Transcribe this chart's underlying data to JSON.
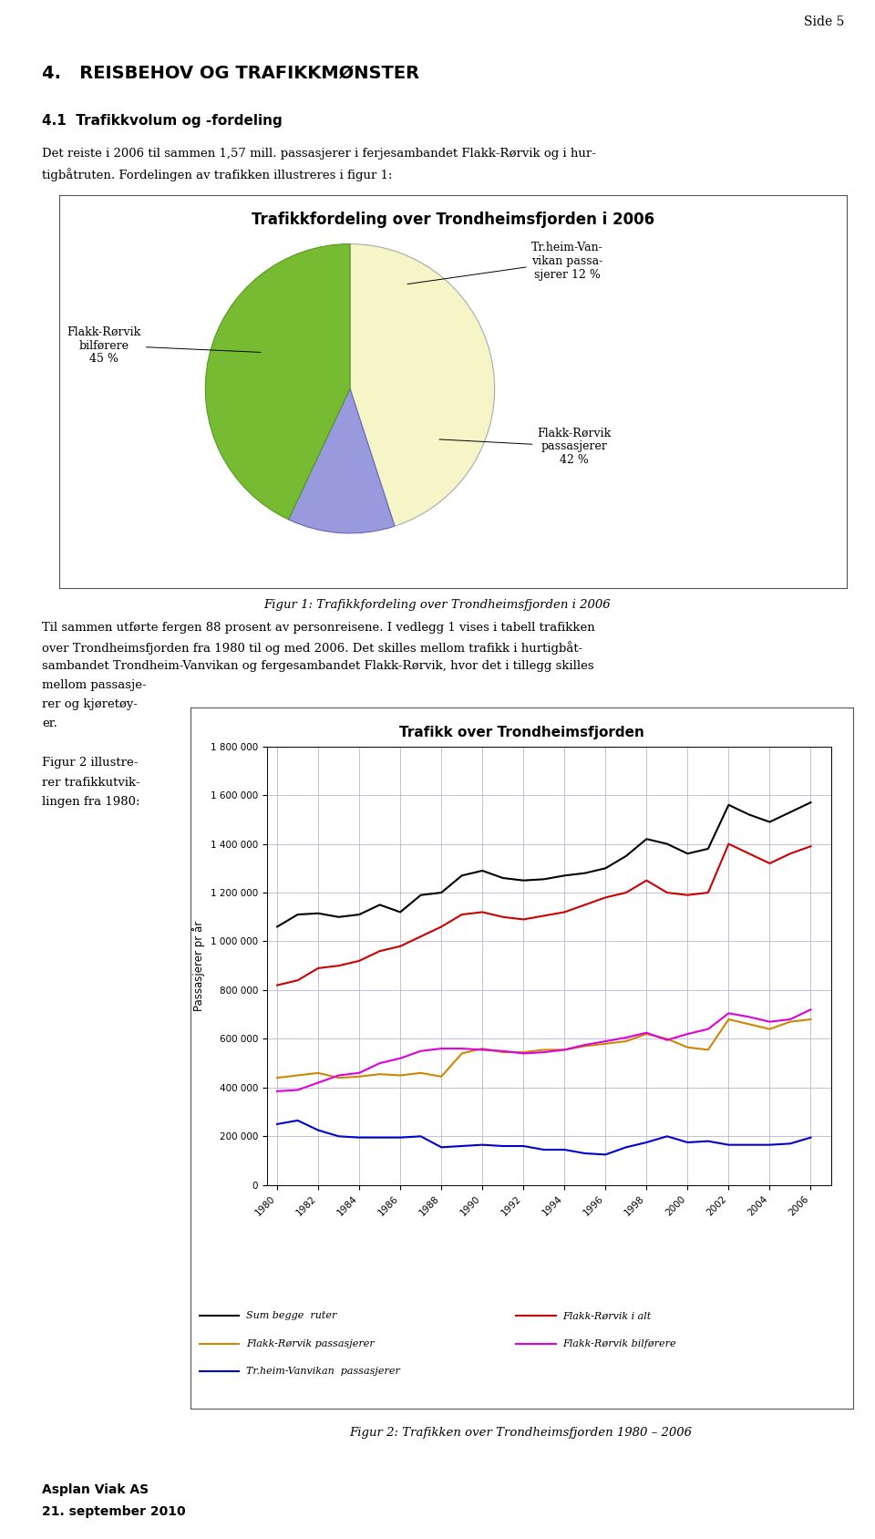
{
  "page_title": "Side 5",
  "section_title": "4.   REISBEHOV OG TRAFIKKMØNSTER",
  "subsection_title": "4.1  Trafikkvolum og -fordeling",
  "para1_line1": "Det reiste i 2006 til sammen 1,57 mill. passasjerer i ferjesambandet Flakk-Rørvik og i hur-",
  "para1_line2": "tigbåtruten. Fordelingen av trafikken illustreres i figur 1:",
  "pie_title": "Trafikkfordeling over Trondheimsfjorden i 2006",
  "pie_values": [
    45,
    12,
    43
  ],
  "pie_colors": [
    "#f5f5c8",
    "#9999dd",
    "#77bb33"
  ],
  "pie_edge_colors": [
    "#aaaaaa",
    "#6666bb",
    "#559922"
  ],
  "fig1_caption": "Figur 1: Trafikkfordeling over Trondheimsfjorden i 2006",
  "para2_lines": [
    "Til sammen utførte fergen 88 prosent av personreisene. I vedlegg 1 vises i tabell trafikken",
    "over Trondheimsfjorden fra 1980 til og med 2006. Det skilles mellom trafikk i hurtigbåt-",
    "sambandet Trondheim-Vanvikan og fergesambandet Flakk-Rørvik, hvor det i tillegg skilles",
    "mellom passasje-",
    "rer og kjøretøy-",
    "er."
  ],
  "para3_lines": [
    "Figur 2 illustre-",
    "rer trafikkutvik-",
    "lingen fra 1980:"
  ],
  "line_title": "Trafikk over Trondheimsfjorden",
  "years": [
    1980,
    1981,
    1982,
    1983,
    1984,
    1985,
    1986,
    1987,
    1988,
    1989,
    1990,
    1991,
    1992,
    1993,
    1994,
    1995,
    1996,
    1997,
    1998,
    1999,
    2000,
    2001,
    2002,
    2003,
    2004,
    2005,
    2006
  ],
  "sum_begge": [
    1060000,
    1110000,
    1115000,
    1100000,
    1110000,
    1150000,
    1120000,
    1190000,
    1200000,
    1270000,
    1290000,
    1260000,
    1250000,
    1255000,
    1270000,
    1280000,
    1300000,
    1350000,
    1420000,
    1400000,
    1360000,
    1380000,
    1560000,
    1520000,
    1490000,
    1530000,
    1570000
  ],
  "flakk_rorvik_alt": [
    820000,
    840000,
    890000,
    900000,
    920000,
    960000,
    980000,
    1020000,
    1060000,
    1110000,
    1120000,
    1100000,
    1090000,
    1105000,
    1120000,
    1150000,
    1180000,
    1200000,
    1250000,
    1200000,
    1190000,
    1200000,
    1400000,
    1360000,
    1320000,
    1360000,
    1390000
  ],
  "flakk_passasjerer": [
    440000,
    450000,
    460000,
    440000,
    445000,
    455000,
    450000,
    460000,
    445000,
    540000,
    560000,
    545000,
    545000,
    555000,
    555000,
    570000,
    580000,
    590000,
    620000,
    600000,
    565000,
    555000,
    680000,
    660000,
    640000,
    670000,
    680000
  ],
  "flakk_bilforere": [
    385000,
    390000,
    420000,
    450000,
    460000,
    500000,
    520000,
    550000,
    560000,
    560000,
    555000,
    550000,
    540000,
    545000,
    555000,
    575000,
    590000,
    605000,
    625000,
    595000,
    620000,
    640000,
    705000,
    690000,
    670000,
    680000,
    720000
  ],
  "trheim_vanvikan": [
    250000,
    265000,
    225000,
    200000,
    195000,
    195000,
    195000,
    200000,
    155000,
    160000,
    165000,
    160000,
    160000,
    145000,
    145000,
    130000,
    125000,
    155000,
    175000,
    200000,
    175000,
    180000,
    165000,
    165000,
    165000,
    170000,
    195000
  ],
  "line_colors": [
    "#000000",
    "#cc0000",
    "#cc8800",
    "#dd00dd",
    "#0000cc"
  ],
  "line_labels": [
    "Sum begge  ruter",
    "Flakk-Rørvik i alt",
    "Flakk-Rørvik passasjerer",
    "Flakk-Rørvik bilførere",
    "Tr.heim-Vanvikan  passasjerer"
  ],
  "fig2_caption": "Figur 2: Trafikken over Trondheimsfjorden 1980 – 2006",
  "footer_left1": "Asplan Viak AS",
  "footer_left2": "21. september 2010",
  "yticks_line": [
    0,
    200000,
    400000,
    600000,
    800000,
    1000000,
    1200000,
    1400000,
    1600000,
    1800000
  ]
}
